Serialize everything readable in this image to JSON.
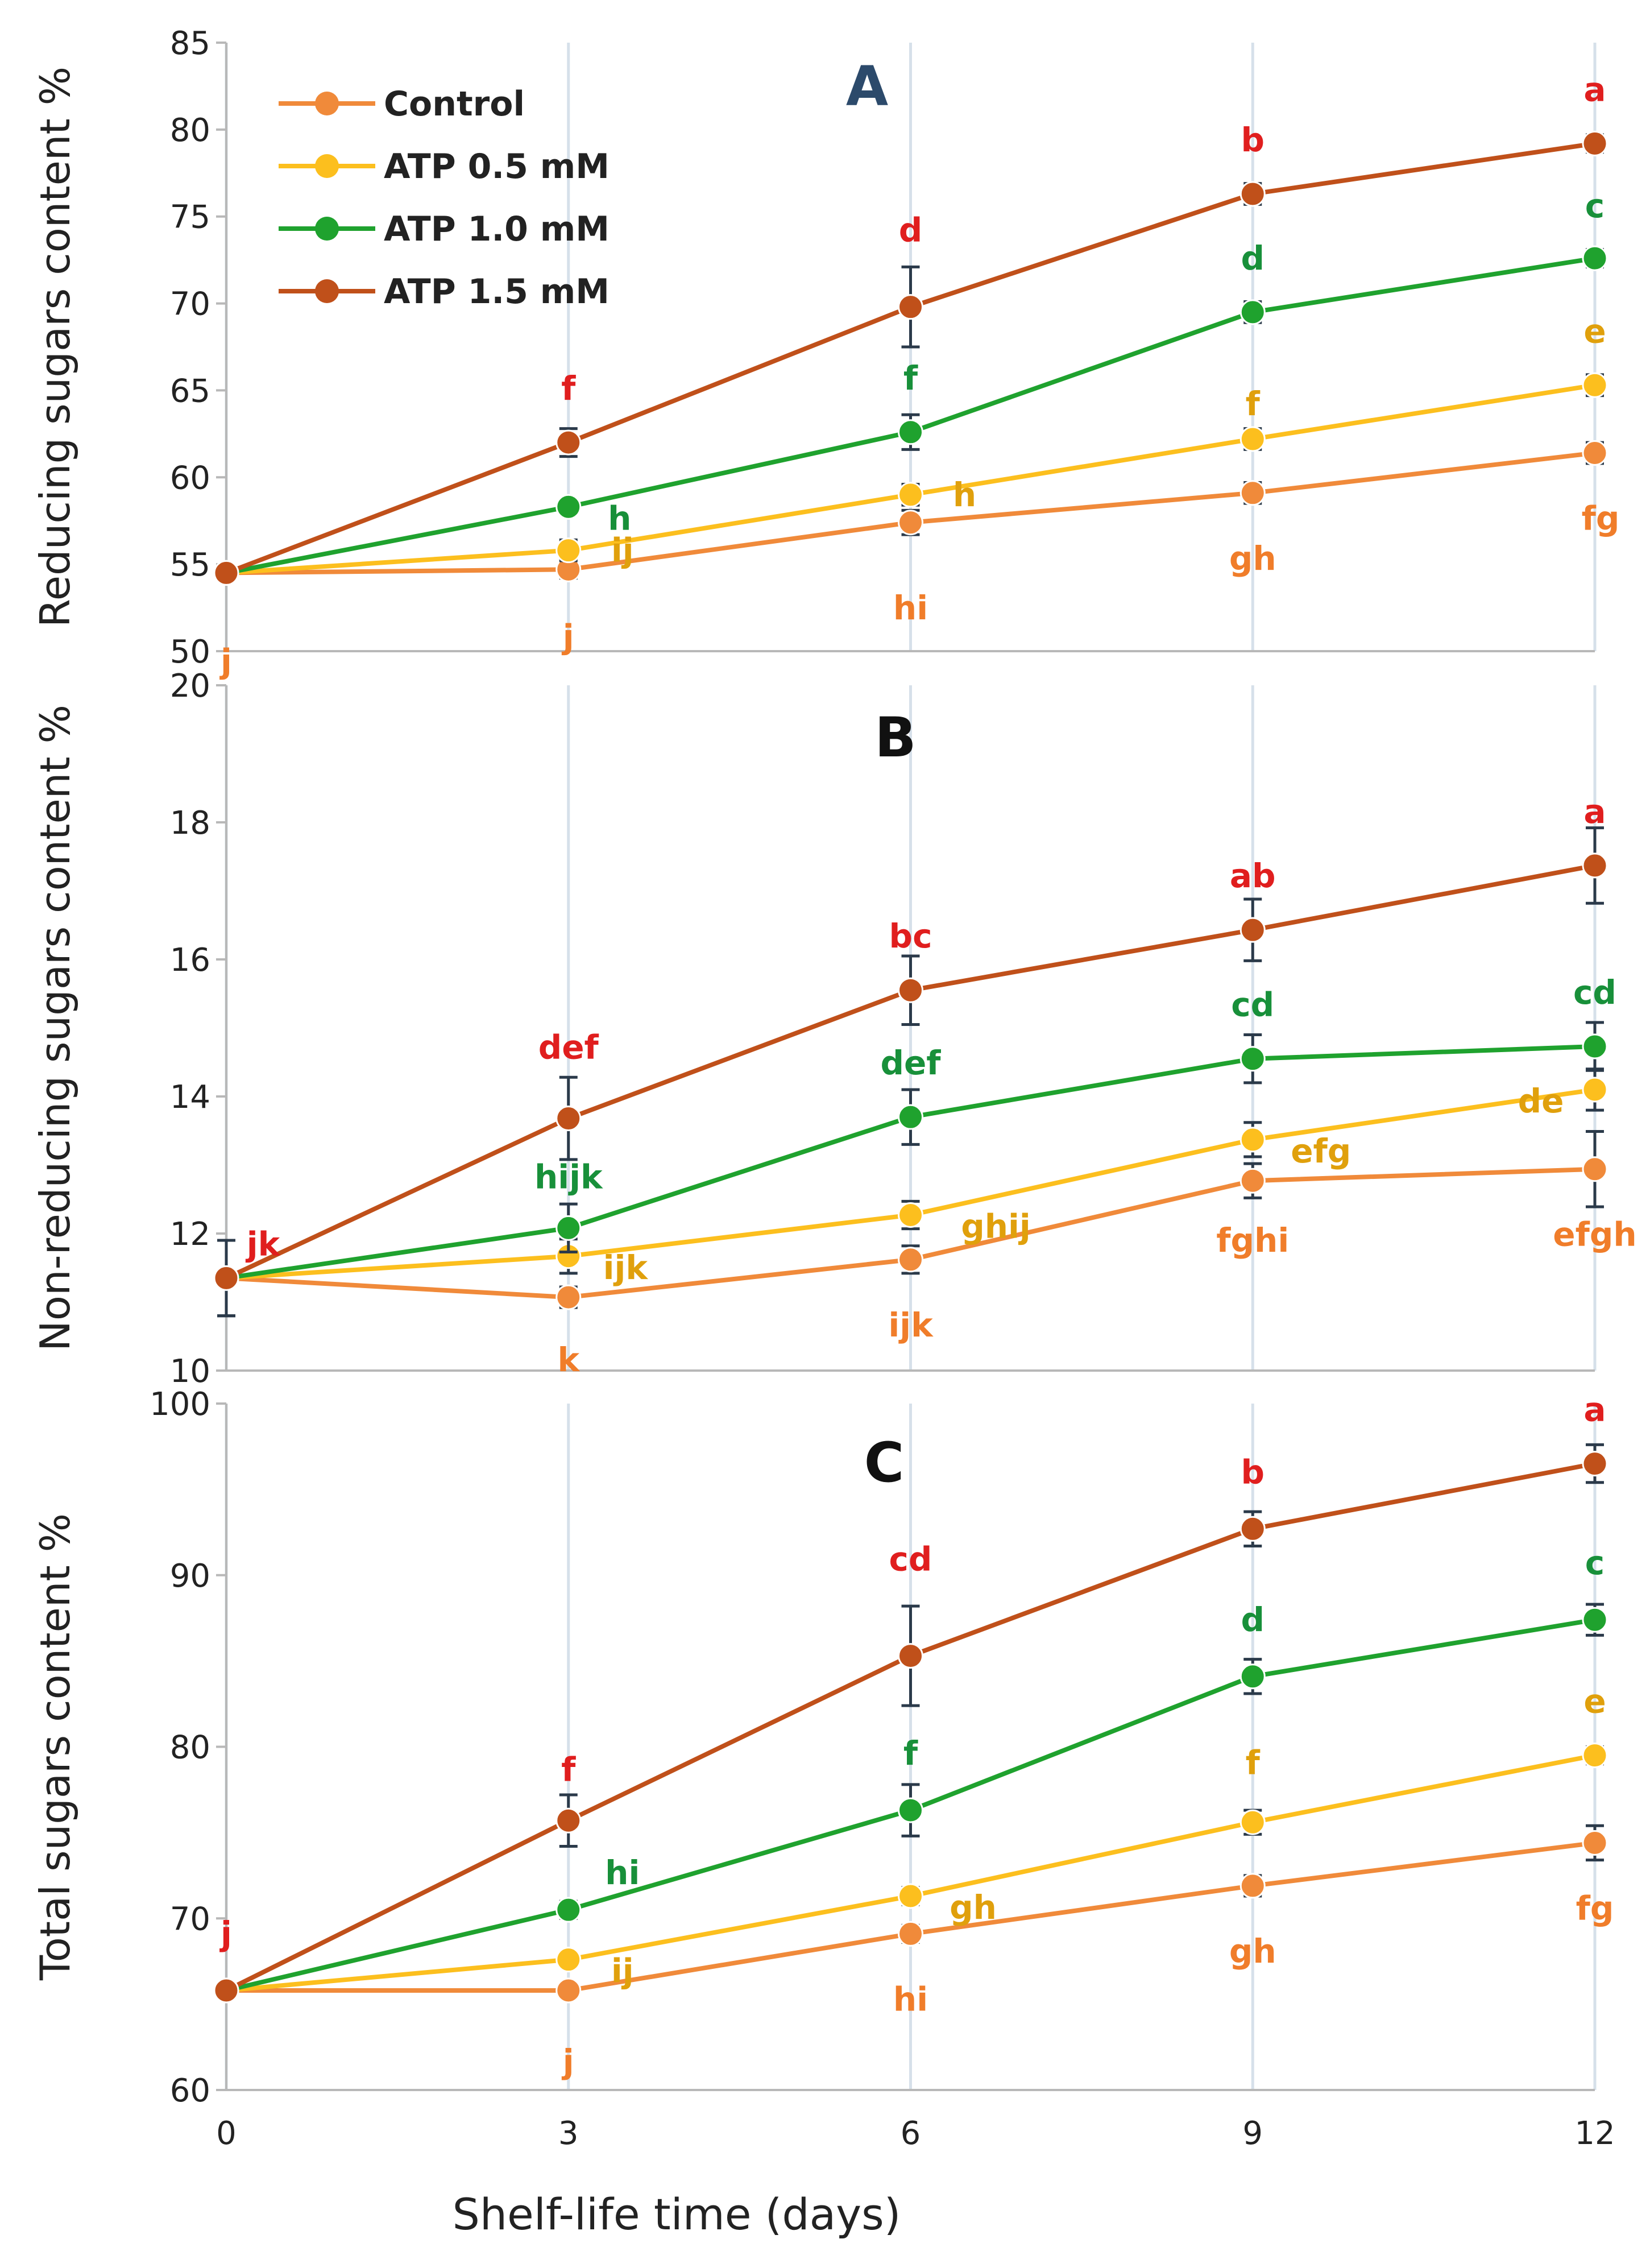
{
  "chart_data": [
    {
      "type": "line",
      "panel_label": "A",
      "ylabel": "Reducing sugars content %",
      "ylim": [
        50,
        85
      ],
      "yticks": [
        50,
        55,
        60,
        65,
        70,
        75,
        80,
        85
      ],
      "x": [
        0,
        3,
        6,
        9,
        12
      ],
      "xlim": [
        0,
        12
      ],
      "grid": "vertical",
      "legend": {
        "placement": "top-left"
      },
      "series": [
        {
          "name": "Control",
          "color": "#f08a3a",
          "values": [
            54.5,
            54.7,
            57.4,
            59.1,
            61.4
          ],
          "errors": [
            0.3,
            0.5,
            0.7,
            0.6,
            0.6
          ],
          "letters": [
            "j",
            "j",
            "hi",
            "gh",
            "fg"
          ]
        },
        {
          "name": "ATP 0.5 mM",
          "color": "#fcbf1e",
          "values": [
            54.5,
            55.8,
            59.0,
            62.2,
            65.3
          ],
          "errors": [
            0.3,
            0.6,
            0.6,
            0.6,
            0.6
          ],
          "letters": [
            "",
            "ij",
            "h",
            "f",
            "e"
          ]
        },
        {
          "name": "ATP 1.0 mM",
          "color": "#1fa22e",
          "values": [
            54.5,
            58.3,
            62.6,
            69.5,
            72.6
          ],
          "errors": [
            0.3,
            0.4,
            1.0,
            0.6,
            0.5
          ],
          "letters": [
            "",
            "h",
            "f",
            "d",
            "c"
          ]
        },
        {
          "name": "ATP 1.5 mM",
          "color": "#c0501a",
          "values": [
            54.5,
            62.0,
            69.8,
            76.3,
            79.2
          ],
          "errors": [
            0.3,
            0.8,
            2.3,
            0.6,
            0.5
          ],
          "letters": [
            "",
            "f",
            "d",
            "b",
            "a"
          ]
        }
      ],
      "letters_color": "#e01e1e"
    },
    {
      "type": "line",
      "panel_label": "B",
      "ylabel": "Non-reducing sugars content %",
      "ylim": [
        10,
        20
      ],
      "yticks": [
        10,
        12,
        14,
        16,
        18,
        20
      ],
      "x": [
        0,
        3,
        6,
        9,
        12
      ],
      "xlim": [
        0,
        12
      ],
      "grid": "vertical",
      "series": [
        {
          "name": "Control",
          "color": "#f08a3a",
          "values": [
            11.35,
            11.07,
            11.62,
            12.77,
            12.94
          ],
          "errors": [
            0.55,
            0.15,
            0.2,
            0.25,
            0.55
          ],
          "letters": [
            "",
            "k",
            "ijk",
            "fghi",
            "efgh"
          ]
        },
        {
          "name": "ATP 0.5 mM",
          "color": "#fcbf1e",
          "values": [
            11.35,
            11.67,
            12.27,
            13.37,
            14.1
          ],
          "errors": [
            0.55,
            0.25,
            0.2,
            0.25,
            0.3
          ],
          "letters": [
            "",
            "ijk",
            "ghij",
            "efg",
            "de"
          ]
        },
        {
          "name": "ATP 1.0 mM",
          "color": "#1fa22e",
          "values": [
            11.35,
            12.08,
            13.7,
            14.55,
            14.73
          ],
          "errors": [
            0.55,
            0.35,
            0.4,
            0.35,
            0.35
          ],
          "letters": [
            "",
            "hijk",
            "def",
            "cd",
            "cd"
          ]
        },
        {
          "name": "ATP 1.5 mM",
          "color": "#c0501a",
          "values": [
            11.35,
            13.68,
            15.55,
            16.43,
            17.37
          ],
          "errors": [
            0.55,
            0.6,
            0.5,
            0.45,
            0.55
          ],
          "letters": [
            "jk",
            "def",
            "bc",
            "ab",
            "a"
          ]
        }
      ]
    },
    {
      "type": "line",
      "panel_label": "C",
      "ylabel": "Total sugars content %",
      "ylim": [
        60,
        100
      ],
      "yticks": [
        60,
        70,
        80,
        90,
        100
      ],
      "x": [
        0,
        3,
        6,
        9,
        12
      ],
      "xticks": [
        "0",
        "3",
        "6",
        "9",
        "12"
      ],
      "xlabel": "Shelf-life time (days)",
      "xlim": [
        0,
        12
      ],
      "grid": "vertical",
      "series": [
        {
          "name": "Control",
          "color": "#f08a3a",
          "values": [
            65.8,
            65.8,
            69.1,
            71.9,
            74.4
          ],
          "errors": [
            0.3,
            0.4,
            0.5,
            0.6,
            1.0
          ],
          "letters": [
            "",
            "j",
            "hi",
            "gh",
            "fg"
          ]
        },
        {
          "name": "ATP 0.5 mM",
          "color": "#fcbf1e",
          "values": [
            65.8,
            67.6,
            71.3,
            75.6,
            79.5
          ],
          "errors": [
            0.3,
            0.4,
            0.5,
            0.7,
            0.5
          ],
          "letters": [
            "",
            "ij",
            "gh",
            "f",
            "e"
          ]
        },
        {
          "name": "ATP 1.0 mM",
          "color": "#1fa22e",
          "values": [
            65.8,
            70.5,
            76.3,
            84.1,
            87.4
          ],
          "errors": [
            0.3,
            0.5,
            1.5,
            1.0,
            0.9
          ],
          "letters": [
            "",
            "hi",
            "f",
            "d",
            "c"
          ]
        },
        {
          "name": "ATP 1.5 mM",
          "color": "#c0501a",
          "values": [
            65.8,
            75.7,
            85.3,
            92.7,
            96.5
          ],
          "errors": [
            0.3,
            1.5,
            2.9,
            1.0,
            1.1
          ],
          "letters": [
            "j",
            "f",
            "cd",
            "b",
            "a"
          ]
        }
      ]
    }
  ],
  "letter_colors": {
    "Control": "#f07d2a",
    "ATP 0.5 mM": "#e0a00c",
    "ATP 1.0 mM": "#18903a",
    "ATP 1.5 mM": "#e01e1e"
  },
  "panel_letter_colors": {
    "A": "#2c4a6b",
    "B": "#111111",
    "C": "#111111"
  }
}
